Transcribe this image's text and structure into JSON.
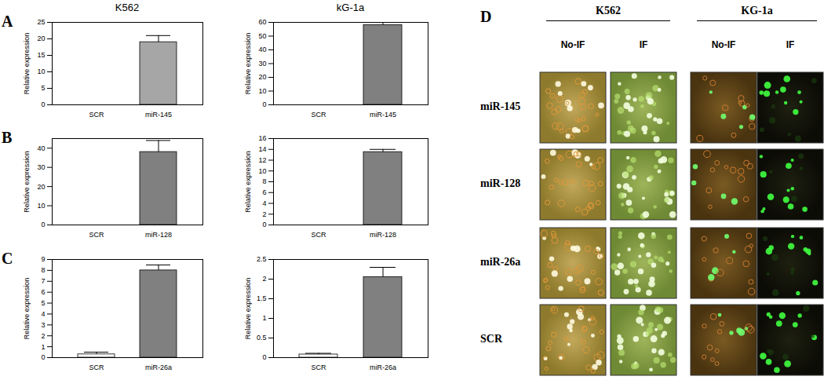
{
  "chart_data": [
    {
      "type": "bar",
      "panel": "A",
      "title": "K562",
      "y_label": "Relative expression",
      "categories": [
        "SCR",
        "miR-145"
      ],
      "values": [
        0,
        19
      ],
      "errors": [
        0,
        2
      ],
      "colors": [
        "#ffffff",
        "#a6a6a6"
      ],
      "ylim": [
        0,
        25
      ],
      "yticks": [
        0,
        5,
        10,
        15,
        20,
        25
      ]
    },
    {
      "type": "bar",
      "title": "kG-1a",
      "y_label": "Relative expression",
      "categories": [
        "SCR",
        "miR-145"
      ],
      "values": [
        0,
        58
      ],
      "errors": [
        0,
        4
      ],
      "colors": [
        "#ffffff",
        "#808080"
      ],
      "ylim": [
        0,
        60
      ],
      "yticks": [
        0,
        10,
        20,
        30,
        40,
        50,
        60
      ]
    },
    {
      "type": "bar",
      "panel": "B",
      "y_label": "Relative expression",
      "categories": [
        "SCR",
        "miR-128"
      ],
      "values": [
        0,
        38
      ],
      "errors": [
        0,
        6
      ],
      "colors": [
        "#ffffff",
        "#808080"
      ],
      "ylim": [
        0,
        45
      ],
      "yticks": [
        0,
        10,
        20,
        30,
        40
      ]
    },
    {
      "type": "bar",
      "y_label": "Relative expression",
      "categories": [
        "SCR",
        "miR-128"
      ],
      "values": [
        0,
        13.5
      ],
      "errors": [
        0,
        0.5
      ],
      "colors": [
        "#ffffff",
        "#808080"
      ],
      "ylim": [
        0,
        16
      ],
      "yticks": [
        0,
        2,
        4,
        6,
        8,
        10,
        12,
        14,
        16
      ]
    },
    {
      "type": "bar",
      "panel": "C",
      "y_label": "Relative expression",
      "categories": [
        "SCR",
        "miR-26a"
      ],
      "values": [
        0.3,
        8
      ],
      "errors": [
        0.2,
        0.5
      ],
      "colors": [
        "#ffffff",
        "#808080"
      ],
      "ylim": [
        0,
        9
      ],
      "yticks": [
        0,
        1,
        2,
        3,
        4,
        5,
        6,
        7,
        8,
        9
      ]
    },
    {
      "type": "bar",
      "y_label": "Relative expression",
      "categories": [
        "SCR",
        "miR-26a"
      ],
      "values": [
        0.08,
        2.05
      ],
      "errors": [
        0.03,
        0.25
      ],
      "colors": [
        "#ffffff",
        "#808080"
      ],
      "ylim": [
        0,
        2.5
      ],
      "yticks": [
        0,
        0.5,
        1,
        1.5,
        2,
        2.5
      ]
    }
  ],
  "image_panel": {
    "panel": "D",
    "groups": [
      {
        "label": "K562",
        "columns": [
          "No-IF",
          "IF"
        ]
      },
      {
        "label": "KG-1a",
        "columns": [
          "No-IF",
          "IF"
        ]
      }
    ],
    "rows": [
      "miR-145",
      "miR-128",
      "miR-26a",
      "SCR"
    ]
  }
}
